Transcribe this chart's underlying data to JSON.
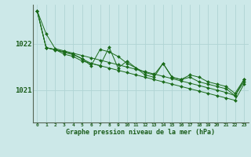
{
  "xlabel": "Graphe pression niveau de la mer (hPa)",
  "background_color": "#cce8e8",
  "grid_color": "#b0d4d4",
  "line_color": "#1a6b1a",
  "marker_color": "#1a6b1a",
  "text_color": "#1a5c1a",
  "yticks": [
    1021,
    1022
  ],
  "ylim": [
    1020.3,
    1022.85
  ],
  "xlim": [
    -0.5,
    23.5
  ],
  "xtick_labels": [
    "0",
    "1",
    "2",
    "3",
    "4",
    "5",
    "6",
    "7",
    "8",
    "9",
    "10",
    "11",
    "12",
    "13",
    "14",
    "15",
    "16",
    "17",
    "18",
    "19",
    "20",
    "21",
    "22",
    "23"
  ],
  "y_line1": [
    1022.72,
    1022.22,
    1021.9,
    1021.85,
    1021.8,
    1021.75,
    1021.7,
    1021.65,
    1021.6,
    1021.55,
    1021.5,
    1021.45,
    1021.4,
    1021.35,
    1021.3,
    1021.25,
    1021.2,
    1021.15,
    1021.1,
    1021.05,
    1021.0,
    1020.95,
    1020.88,
    1021.18
  ],
  "y_line2": [
    1022.72,
    1021.92,
    1021.88,
    1021.83,
    1021.78,
    1021.68,
    1021.53,
    1021.88,
    1021.83,
    1021.73,
    1021.58,
    1021.48,
    1021.33,
    1021.28,
    1021.58,
    1021.28,
    1021.23,
    1021.33,
    1021.28,
    1021.18,
    1021.13,
    1021.08,
    1020.93,
    1021.23
  ],
  "y_line3": [
    1022.72,
    1021.92,
    1021.88,
    1021.78,
    1021.73,
    1021.63,
    1021.58,
    1021.53,
    1021.93,
    1021.48,
    1021.63,
    1021.48,
    1021.38,
    1021.33,
    1021.58,
    1021.28,
    1021.23,
    1021.28,
    1021.18,
    1021.13,
    1021.08,
    1021.03,
    1020.88,
    1021.23
  ],
  "y_line4": [
    1022.72,
    1021.92,
    1021.87,
    1021.82,
    1021.77,
    1021.68,
    1021.58,
    1021.53,
    1021.48,
    1021.43,
    1021.38,
    1021.33,
    1021.28,
    1021.23,
    1021.18,
    1021.13,
    1021.08,
    1021.03,
    1020.98,
    1020.93,
    1020.88,
    1020.83,
    1020.78,
    1021.13
  ]
}
